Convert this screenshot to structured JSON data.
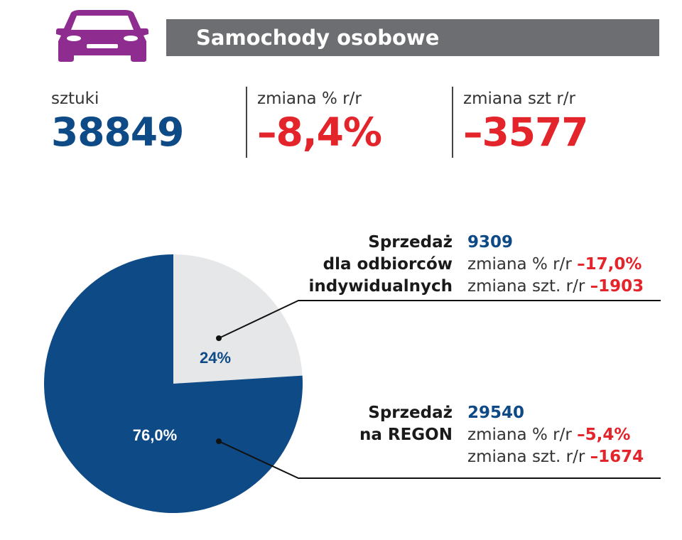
{
  "header": {
    "title": "Samochody osobowe",
    "icon": "car-icon",
    "icon_color": "#8e2c8f"
  },
  "stats": [
    {
      "label": "sztuki",
      "value": "38849",
      "color": "#0e4a86"
    },
    {
      "label": "zmiana % r/r",
      "value": "–8,4%",
      "color": "#e3242b"
    },
    {
      "label": "zmiana szt r/r",
      "value": "–3577",
      "color": "#e3242b"
    }
  ],
  "colors": {
    "blue": "#0e4a86",
    "grey": "#e6e7e8",
    "red": "#e3242b"
  },
  "chart_data": {
    "type": "pie",
    "slices": [
      {
        "label_lines": [
          "Sprzedaż",
          "dla odbiorców",
          "indywidualnych"
        ],
        "percent": 24,
        "percent_label": "24%",
        "color": "#e6e7e8",
        "label_color": "#0e4a86",
        "total": "9309",
        "change_pct_label": "zmiana % r/r",
        "change_pct": "–17,0%",
        "change_units_label": "zmiana szt. r/r",
        "change_units": "–1903"
      },
      {
        "label_lines": [
          "Sprzedaż",
          "na REGON"
        ],
        "percent": 76.0,
        "percent_label": "76,0%",
        "color": "#0e4a86",
        "label_color": "#ffffff",
        "total": "29540",
        "change_pct_label": "zmiana % r/r",
        "change_pct": "–5,4%",
        "change_units_label": "zmiana szt. r/r",
        "change_units": "–1674"
      }
    ]
  }
}
